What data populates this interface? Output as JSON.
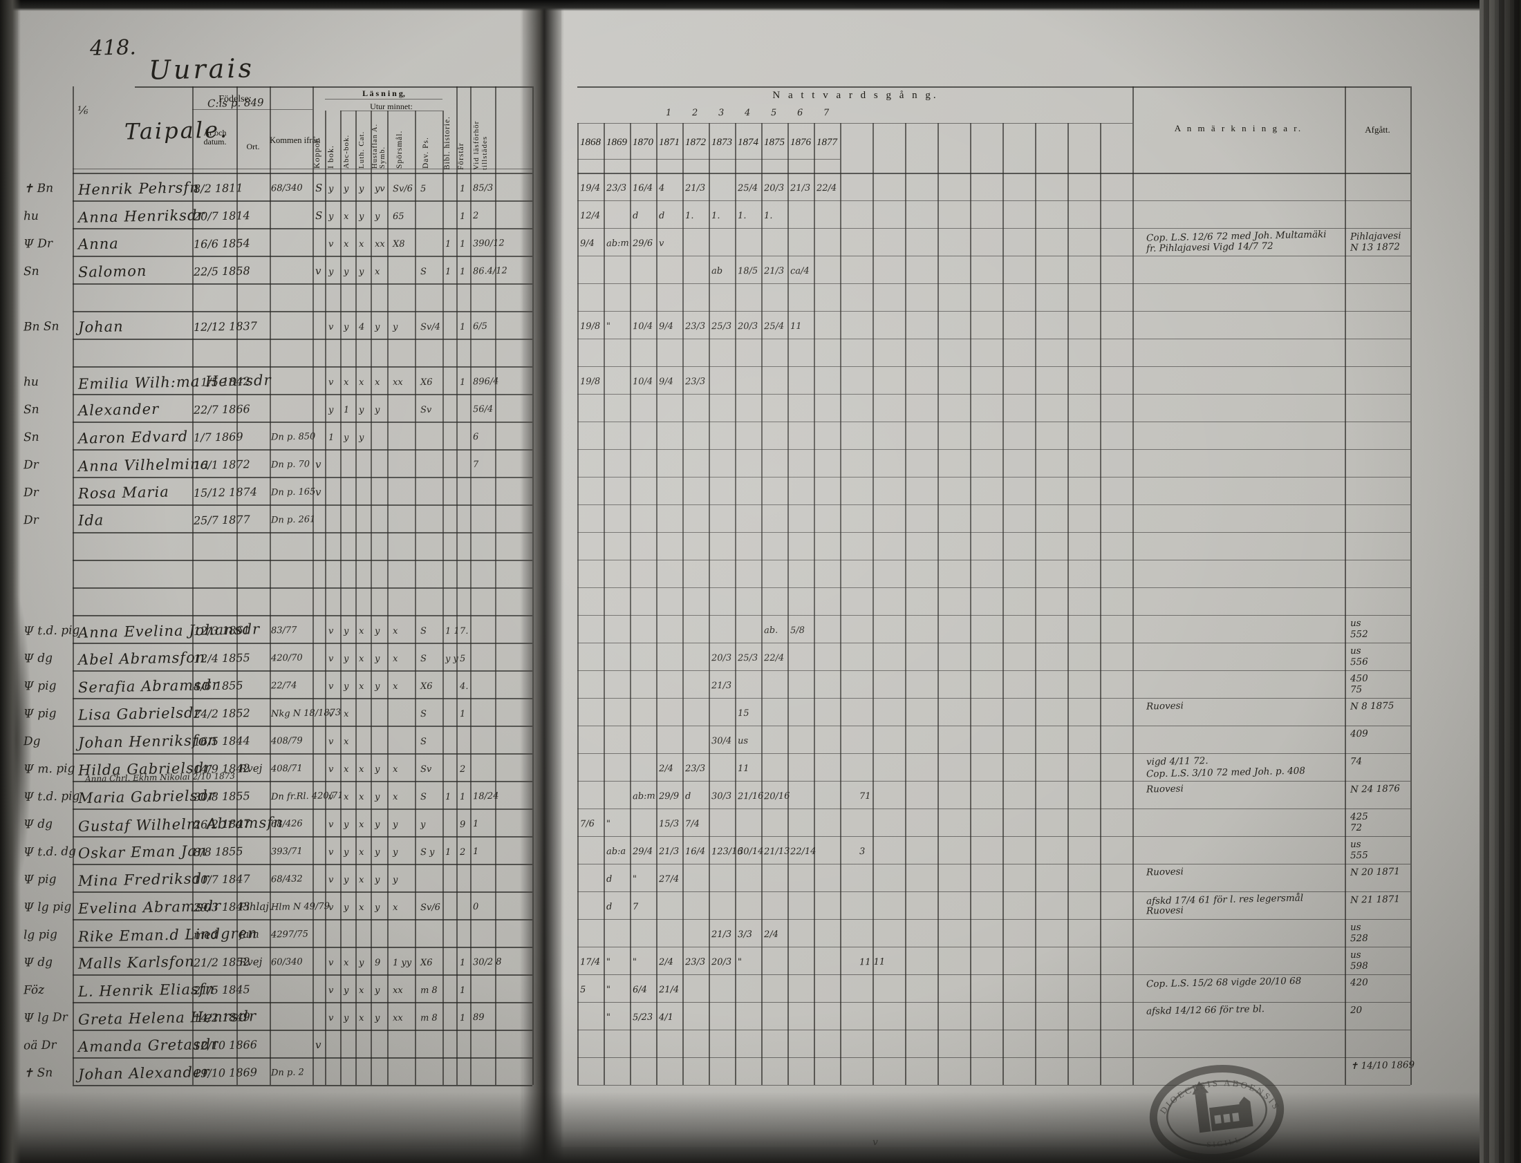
{
  "page": {
    "number": "418.",
    "title": "Uurais",
    "ref": "C:is p. 849",
    "margin_mark": "⅙",
    "margin_mark2": "6",
    "village": "Taipale.",
    "bottom_mark": "v"
  },
  "headers": {
    "fodelse": "Födelse:",
    "ar_och_datum": "År och datum.",
    "ort": "Ort.",
    "kommen_ifran": "Kommen ifrån",
    "koppor": "Koppor.",
    "lasning": "L ä s n i n g,",
    "utur_minnet": "Utur minnet:",
    "i_bok": "I bok.",
    "abc_bok": "Abc-bok.",
    "luth_cat": "Luth. Cat.",
    "hustaflan": "Hustaflan A. Symb.",
    "sporsmal": "Spörsmål.",
    "dav_ps": "Dav. Ps.",
    "bibl_historie": "Bibl. historie.",
    "forstar": "Förstår",
    "tillstades": "Vid läsförhör tillstädes",
    "nattvardsgang": "N a t t v a r d s g å n g.",
    "anmarkningar": "A n m ä r k n i n g a r.",
    "afgatt": "Afgått."
  },
  "years": [
    "1868",
    "1869",
    "1870",
    "1871",
    "1872",
    "1873",
    "1874",
    "1875",
    "1876",
    "1877"
  ],
  "year_superscripts": [
    "1",
    "2",
    "3",
    "4",
    "5",
    "6",
    "7"
  ],
  "stamp": {
    "text_top": "DIOECESIS ABOENSIS",
    "text_bottom": "· SIGILL ·"
  },
  "rows": [
    {
      "name": "Henrik Pehrsfn",
      "margin": "✝ Bn",
      "date": "8/2 1811",
      "ort": "",
      "kommen": "68/340",
      "kopp": "S",
      "marks": [
        "y",
        "y",
        "y",
        "yv",
        "Sv/6",
        "5"
      ],
      "bibl": "",
      "forst": "1",
      "tillst": "85/3",
      "comm": [
        "19/4",
        "23/3",
        "16/4",
        "4",
        "21/3",
        "",
        "25/4",
        "20/3",
        "21/3",
        "22/4"
      ],
      "extra": "",
      "anm": [],
      "afg": [],
      "note": ""
    },
    {
      "name": "Anna Henriksdr",
      "margin": "hu",
      "date": "20/7 1814",
      "ort": "",
      "kommen": "",
      "kopp": "S",
      "marks": [
        "y",
        "x",
        "y",
        "y",
        "65",
        ""
      ],
      "bibl": "",
      "forst": "1",
      "tillst": "2",
      "comm": [
        "12/4",
        "",
        "d",
        "d",
        "1.",
        "1.",
        "1.",
        "1.",
        "",
        ""
      ],
      "extra": "",
      "anm": [],
      "afg": [],
      "note": ""
    },
    {
      "name": "Anna",
      "margin": "Ψ Dr",
      "date": "16/6 1854",
      "ort": "",
      "kommen": "",
      "kopp": "",
      "marks": [
        "v",
        "x",
        "x",
        "xx",
        "X8",
        ""
      ],
      "bibl": "1",
      "forst": "1",
      "tillst": "390/12",
      "comm": [
        "9/4",
        "ab:m",
        "29/6",
        "v",
        "",
        "",
        "",
        "",
        "",
        ""
      ],
      "extra": "",
      "anm": [
        "Cop. L.S. 12/6 72 med Joh. Multamäki",
        "fr. Pihlajavesi  Vigd 14/7 72"
      ],
      "afg": [
        "Pihlajavesi",
        "N 13 1872"
      ],
      "note": ""
    },
    {
      "name": "Salomon",
      "margin": "Sn",
      "date": "22/5 1858",
      "ort": "",
      "kommen": "",
      "kopp": "v",
      "marks": [
        "y",
        "y",
        "y",
        "x",
        "",
        "S"
      ],
      "bibl": "1",
      "forst": "1",
      "tillst": "86.4/12",
      "comm": [
        "",
        "",
        "",
        "",
        "",
        "ab",
        "18/5",
        "21/3",
        "ca/4",
        ""
      ],
      "extra": "",
      "anm": [],
      "afg": [],
      "note": ""
    },
    null,
    {
      "name": "Johan",
      "margin": "Bn Sn",
      "date": "12/12 1837",
      "ort": "",
      "kommen": "",
      "kopp": "",
      "marks": [
        "v",
        "y",
        "4",
        "y",
        "y",
        "Sv/4"
      ],
      "bibl": "",
      "forst": "1",
      "tillst": "6/5",
      "comm": [
        "19/8",
        "\"",
        "10/4",
        "9/4",
        "23/3",
        "25/3",
        "20/3",
        "25/4",
        "11",
        ""
      ],
      "extra": "",
      "anm": [],
      "afg": [],
      "note": ""
    },
    null,
    {
      "name": "Emilia Wilh:ma Henrsdr",
      "margin": "hu",
      "date": "11/5 1842",
      "ort": "",
      "kommen": "",
      "kopp": "",
      "marks": [
        "v",
        "x",
        "x",
        "x",
        "xx",
        "X6"
      ],
      "bibl": "",
      "forst": "1",
      "tillst": "896/4",
      "comm": [
        "19/8",
        "",
        "10/4",
        "9/4",
        "23/3",
        "",
        "",
        "",
        "",
        ""
      ],
      "extra": "",
      "anm": [],
      "afg": [],
      "note": ""
    },
    {
      "name": "Alexander",
      "margin": "Sn",
      "date": "22/7 1866",
      "ort": "",
      "kommen": "",
      "kopp": "",
      "marks": [
        "y",
        "1",
        "y",
        "y",
        "",
        "Sv"
      ],
      "bibl": "",
      "forst": "",
      "tillst": "56/4",
      "comm": [
        "",
        "",
        "",
        "",
        "",
        "",
        "",
        "",
        "",
        ""
      ],
      "extra": "",
      "anm": [],
      "afg": [],
      "note": ""
    },
    {
      "name": "Aaron Edvard",
      "margin": "Sn",
      "date": "1/7 1869",
      "ort": "",
      "kommen": "Dn p. 850",
      "kopp": "",
      "marks": [
        "1",
        "y",
        "y",
        "",
        "",
        ""
      ],
      "bibl": "",
      "forst": "",
      "tillst": "6",
      "comm": [
        "",
        "",
        "",
        "",
        "",
        "",
        "",
        "",
        "",
        ""
      ],
      "extra": "",
      "anm": [],
      "afg": [],
      "note": ""
    },
    {
      "name": "Anna Vilhelmina",
      "margin": "Dr",
      "date": "16/1 1872",
      "ort": "",
      "kommen": "Dn p. 70",
      "kopp": "v",
      "marks": [
        "",
        "",
        "",
        "",
        "",
        ""
      ],
      "bibl": "",
      "forst": "",
      "tillst": "7",
      "comm": [
        "",
        "",
        "",
        "",
        "",
        "",
        "",
        "",
        "",
        ""
      ],
      "extra": "",
      "anm": [],
      "afg": [],
      "note": ""
    },
    {
      "name": "Rosa Maria",
      "margin": "Dr",
      "date": "15/12 1874",
      "ort": "",
      "kommen": "Dn p. 165",
      "kopp": "v",
      "marks": [
        "",
        "",
        "",
        "",
        "",
        ""
      ],
      "bibl": "",
      "forst": "",
      "tillst": "",
      "comm": [
        "",
        "",
        "",
        "",
        "",
        "",
        "",
        "",
        "",
        ""
      ],
      "extra": "",
      "anm": [],
      "afg": [],
      "note": ""
    },
    {
      "name": "Ida",
      "margin": "Dr",
      "date": "25/7 1877",
      "ort": "",
      "kommen": "Dn p. 261",
      "kopp": "",
      "marks": [
        "",
        "",
        "",
        "",
        "",
        ""
      ],
      "bibl": "",
      "forst": "",
      "tillst": "",
      "comm": [
        "",
        "",
        "",
        "",
        "",
        "",
        "",
        "",
        "",
        ""
      ],
      "extra": "",
      "anm": [],
      "afg": [],
      "note": ""
    },
    null,
    null,
    null,
    {
      "name": "Anna Evelina Johansdr",
      "margin": "Ψ t.d. pig",
      "date": "12/3 1861",
      "ort": "",
      "kommen": "83/77",
      "kopp": "",
      "marks": [
        "v",
        "y",
        "x",
        "y",
        "x",
        "S"
      ],
      "bibl": "1 1",
      "forst": "7.",
      "tillst": "",
      "comm": [
        "",
        "",
        "",
        "",
        "",
        "",
        "",
        "ab.",
        "5/8",
        ""
      ],
      "extra": "",
      "anm": [],
      "afg": [
        "us",
        "552"
      ],
      "note": ""
    },
    {
      "name": "Abel Abramsfon",
      "margin": "Ψ dg",
      "date": "12/4 1855",
      "ort": "",
      "kommen": "420/70",
      "kopp": "",
      "marks": [
        "v",
        "y",
        "x",
        "y",
        "x",
        "S"
      ],
      "bibl": "y y",
      "forst": "5",
      "tillst": "",
      "comm": [
        "",
        "",
        "",
        "",
        "",
        "20/3",
        "25/3",
        "22/4",
        "",
        ""
      ],
      "extra": "",
      "anm": [],
      "afg": [
        "us",
        "556"
      ],
      "note": ""
    },
    {
      "name": "Serafia Abramsdr",
      "margin": "Ψ pig",
      "date": "4/6 1855",
      "ort": "",
      "kommen": "22/74",
      "kopp": "",
      "marks": [
        "v",
        "y",
        "x",
        "y",
        "x",
        "X6"
      ],
      "bibl": "",
      "forst": "4.",
      "tillst": "",
      "comm": [
        "",
        "",
        "",
        "",
        "",
        "21/3",
        "",
        "",
        "",
        ""
      ],
      "extra": "",
      "anm": [],
      "afg": [
        "450",
        "75"
      ],
      "note": ""
    },
    {
      "name": "Lisa Gabrielsdr",
      "margin": "Ψ pig",
      "date": "24/2 1852",
      "ort": "",
      "kommen": "Nkg N 18/1873",
      "kopp": "",
      "marks": [
        "v",
        "x",
        "",
        "",
        "",
        "S"
      ],
      "bibl": "",
      "forst": "1",
      "tillst": "",
      "comm": [
        "",
        "",
        "",
        "",
        "",
        "",
        "15",
        "",
        "",
        ""
      ],
      "extra": "",
      "anm": [
        "Ruovesi"
      ],
      "afg": [
        "N 8 1875"
      ],
      "note": ""
    },
    {
      "name": "Johan Henriksfon",
      "margin": "Dg",
      "date": "16/5 1844",
      "ort": "",
      "kommen": "408/79",
      "kopp": "",
      "marks": [
        "v",
        "x",
        "",
        "",
        "",
        "S"
      ],
      "bibl": "",
      "forst": "",
      "tillst": "",
      "comm": [
        "",
        "",
        "",
        "",
        "",
        "30/4",
        "us",
        "",
        "",
        ""
      ],
      "extra": "",
      "anm": [],
      "afg": [
        "409"
      ],
      "note": ""
    },
    {
      "name": "Hilda Gabrielsdr",
      "margin": "Ψ m. pig",
      "date": "14/9 1842",
      "ort": "Rvej",
      "kommen": "408/71",
      "kopp": "",
      "marks": [
        "v",
        "x",
        "x",
        "y",
        "x",
        "Sv"
      ],
      "bibl": "",
      "forst": "2",
      "tillst": "",
      "comm": [
        "",
        "",
        "",
        "2/4",
        "23/3",
        "",
        "11",
        "",
        "",
        ""
      ],
      "extra": "",
      "anm": [
        "vigd 4/11 72.",
        "Cop. L.S. 3/10 72 med Joh. p. 408"
      ],
      "afg": [
        "74"
      ],
      "note": ""
    },
    {
      "name": "Maria Gabrielsdr",
      "margin": "Ψ t.d. pig",
      "date": "30/8 1855",
      "ort": "",
      "kommen": "Dn fr.Rl. 420/71",
      "kopp": "",
      "marks": [
        "v",
        "x",
        "x",
        "y",
        "x",
        "S"
      ],
      "bibl": "1",
      "forst": "1",
      "tillst": "18/24",
      "comm": [
        "",
        "",
        "ab:m",
        "29/9",
        "d",
        "30/3",
        "21/16",
        "20/16",
        "",
        ""
      ],
      "extra": "71",
      "anm": [
        "Ruovesi"
      ],
      "afg": [
        "N 24 1876"
      ],
      "note": "Anna Chrl. Ekhm  Nikolai 2/10 1873"
    },
    {
      "name": "Gustaf Wilhelm Abramsfn",
      "margin": "Ψ dg",
      "date": "26/2 1847",
      "ort": "",
      "kommen": "68/426",
      "kopp": "",
      "marks": [
        "v",
        "y",
        "x",
        "y",
        "y",
        "y"
      ],
      "bibl": "",
      "forst": "9",
      "tillst": "1",
      "comm": [
        "7/6",
        "\"",
        "",
        "15/3",
        "7/4",
        "",
        "",
        "",
        "",
        ""
      ],
      "extra": "",
      "anm": [],
      "afg": [
        "425",
        "72"
      ],
      "note": ""
    },
    {
      "name": "Oskar Eman Jan",
      "margin": "Ψ t.d. dg",
      "date": "8/8 1855",
      "ort": "",
      "kommen": "393/71",
      "kopp": "",
      "marks": [
        "v",
        "y",
        "x",
        "y",
        "y",
        "S y"
      ],
      "bibl": "1",
      "forst": "2",
      "tillst": "1",
      "comm": [
        "",
        "ab:a",
        "29/4",
        "21/3",
        "16/4",
        "123/16",
        "30/14",
        "21/13",
        "22/14",
        ""
      ],
      "extra": "3",
      "anm": [],
      "afg": [
        "us",
        "555"
      ],
      "note": ""
    },
    {
      "name": "Mina Fredriksdr",
      "margin": "Ψ pig",
      "date": "10/7 1847",
      "ort": "",
      "kommen": "68/432",
      "kopp": "",
      "marks": [
        "v",
        "y",
        "x",
        "y",
        "y",
        ""
      ],
      "bibl": "",
      "forst": "",
      "tillst": "",
      "comm": [
        "",
        "d",
        "\"",
        "27/4",
        "",
        "",
        "",
        "",
        "",
        ""
      ],
      "extra": "",
      "anm": [
        "Ruovesi"
      ],
      "afg": [
        "N 20 1871"
      ],
      "note": ""
    },
    {
      "name": "Evelina Abramsdr",
      "margin": "Ψ lg pig",
      "date": "29/3 1843",
      "ort": "Pihlaj.",
      "kommen": "Hlm N 49/79",
      "kopp": "",
      "marks": [
        "v",
        "y",
        "x",
        "y",
        "x",
        "Sv/6"
      ],
      "bibl": "",
      "forst": "",
      "tillst": "0",
      "comm": [
        "",
        "d",
        "7",
        "",
        "",
        "",
        "",
        "",
        "",
        ""
      ],
      "extra": "",
      "anm": [
        "afskd 17/4 61 för l. res legersmål",
        "Ruovesi"
      ],
      "afg": [
        "N 21 1871"
      ],
      "note": ""
    },
    {
      "name": "Rike Eman.d Lindgren",
      "margin": "lg pig",
      "date": "med",
      "ort": "fam",
      "kommen": "4297/75",
      "kopp": "",
      "marks": [
        "",
        "",
        "",
        "",
        "",
        ""
      ],
      "bibl": "",
      "forst": "",
      "tillst": "",
      "comm": [
        "",
        "",
        "",
        "",
        "",
        "21/3",
        "3/3",
        "2/4",
        "",
        ""
      ],
      "extra": "",
      "anm": [],
      "afg": [
        "us",
        "528"
      ],
      "note": ""
    },
    {
      "name": "Malls Karlsfon",
      "margin": "Ψ dg",
      "date": "21/2 1852",
      "ort": "Rvej",
      "kommen": "60/340",
      "kopp": "",
      "marks": [
        "v",
        "x",
        "y",
        "9",
        "1 yy",
        "X6"
      ],
      "bibl": "",
      "forst": "1",
      "tillst": "30/2 8",
      "comm": [
        "17/4",
        "\"",
        "\"",
        "2/4",
        "23/3",
        "20/3",
        "\"",
        "",
        "",
        ""
      ],
      "extra": "11   11",
      "anm": [],
      "afg": [
        "us",
        "598"
      ],
      "note": ""
    },
    {
      "name": "L. Henrik Eliasfn",
      "margin": "Föz",
      "date": "21/5 1845",
      "ort": "",
      "kommen": "",
      "kopp": "",
      "marks": [
        "v",
        "y",
        "x",
        "y",
        "xx",
        "m 8"
      ],
      "bibl": "",
      "forst": "1",
      "tillst": "",
      "comm": [
        "5",
        "\"",
        "6/4",
        "21/4",
        "",
        "",
        "",
        "",
        "",
        ""
      ],
      "extra": "",
      "anm": [
        "Cop. L.S. 15/2 68 vigde 20/10 68"
      ],
      "afg": [
        "420"
      ],
      "note": ""
    },
    {
      "name": "Greta Helena Henrsdr",
      "margin": "Ψ lg Dr",
      "date": "14/2 1849",
      "ort": "",
      "kommen": "",
      "kopp": "",
      "marks": [
        "v",
        "y",
        "x",
        "y",
        "xx",
        "m 8"
      ],
      "bibl": "",
      "forst": "1",
      "tillst": "89",
      "comm": [
        "",
        "\"",
        "5/23",
        "4/1",
        "",
        "",
        "",
        "",
        "",
        ""
      ],
      "extra": "",
      "anm": [
        "afskd 14/12 66 för tre bl."
      ],
      "afg": [
        "20"
      ],
      "note": ""
    },
    {
      "name": "Amanda Gretasdr",
      "margin": "oä Dr",
      "date": "12/10 1866",
      "ort": "",
      "kommen": "",
      "kopp": "v",
      "marks": [
        "",
        "",
        "",
        "",
        "",
        ""
      ],
      "bibl": "",
      "forst": "",
      "tillst": "",
      "comm": [
        "",
        "",
        "",
        "",
        "",
        "",
        "",
        "",
        "",
        ""
      ],
      "extra": "",
      "anm": [],
      "afg": [],
      "note": ""
    },
    {
      "name": "Johan Alexander",
      "margin": "✝ Sn",
      "date": "19/10 1869",
      "ort": "",
      "kommen": "Dn p. 2",
      "kopp": "",
      "marks": [
        "",
        "",
        "",
        "",
        "",
        ""
      ],
      "bibl": "",
      "forst": "",
      "tillst": "",
      "comm": [
        "",
        "",
        "",
        "",
        "",
        "",
        "",
        "",
        "",
        ""
      ],
      "extra": "",
      "anm": [],
      "afg": [
        "✝ 14/10 1869"
      ],
      "note": ""
    }
  ]
}
